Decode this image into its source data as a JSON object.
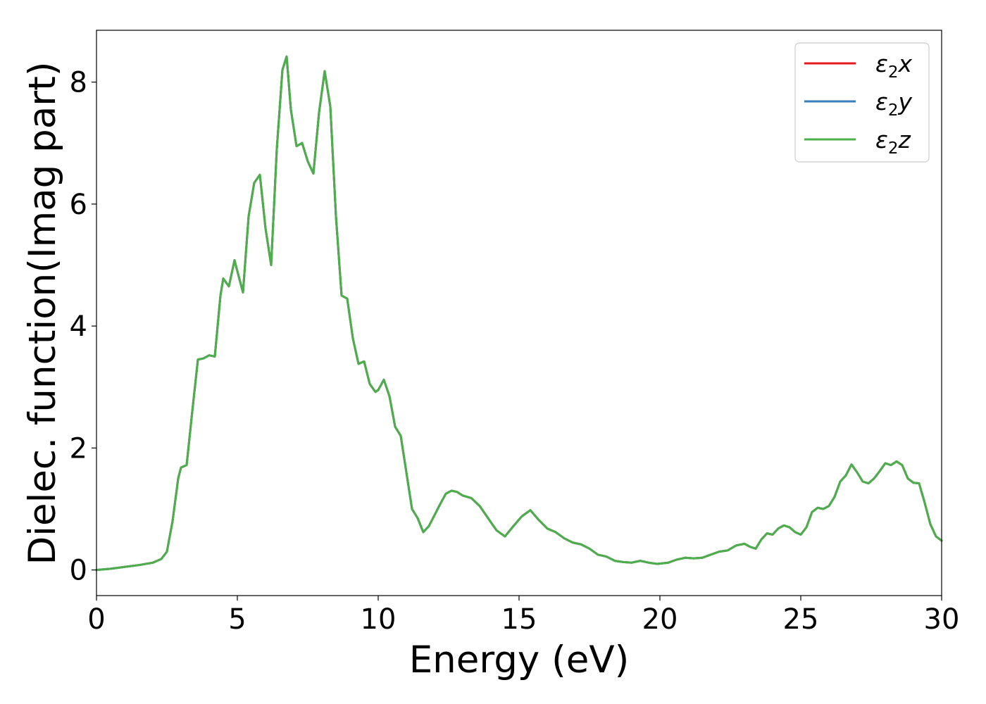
{
  "chart_data": {
    "type": "line",
    "title": "",
    "xlabel": "Energy (eV)",
    "ylabel": "Dielec. function(Imag part)",
    "xlim": [
      0,
      30
    ],
    "ylim": [
      -0.42,
      8.85
    ],
    "xticks": [
      0,
      5,
      10,
      15,
      20,
      25,
      30
    ],
    "yticks": [
      0,
      2,
      4,
      6,
      8
    ],
    "grid": false,
    "legend_position": "top-right",
    "x": [
      0,
      0.5,
      1.0,
      1.5,
      2.0,
      2.3,
      2.5,
      2.7,
      2.9,
      3.0,
      3.2,
      3.4,
      3.6,
      3.8,
      4.0,
      4.2,
      4.4,
      4.5,
      4.7,
      4.9,
      5.0,
      5.2,
      5.4,
      5.6,
      5.8,
      6.0,
      6.2,
      6.4,
      6.6,
      6.75,
      6.9,
      7.1,
      7.3,
      7.5,
      7.7,
      7.9,
      8.1,
      8.3,
      8.5,
      8.7,
      8.9,
      9.1,
      9.3,
      9.5,
      9.7,
      9.9,
      10.0,
      10.2,
      10.4,
      10.6,
      10.8,
      11.0,
      11.2,
      11.4,
      11.6,
      11.8,
      12.0,
      12.2,
      12.4,
      12.6,
      12.8,
      13.0,
      13.3,
      13.6,
      13.9,
      14.2,
      14.5,
      14.8,
      15.1,
      15.4,
      15.7,
      16.0,
      16.3,
      16.6,
      16.9,
      17.2,
      17.5,
      17.8,
      18.1,
      18.4,
      18.7,
      19.0,
      19.3,
      19.6,
      19.9,
      20.3,
      20.6,
      20.9,
      21.2,
      21.5,
      21.8,
      22.1,
      22.4,
      22.7,
      23.0,
      23.2,
      23.4,
      23.6,
      23.8,
      24.0,
      24.2,
      24.4,
      24.6,
      24.8,
      25.0,
      25.2,
      25.4,
      25.6,
      25.8,
      26.0,
      26.2,
      26.4,
      26.6,
      26.8,
      27.0,
      27.2,
      27.4,
      27.6,
      27.8,
      28.0,
      28.2,
      28.4,
      28.6,
      28.8,
      29.0,
      29.2,
      29.4,
      29.6,
      29.8,
      30.0
    ],
    "series": [
      {
        "name": "ε₂x",
        "color": "#e41a1c",
        "values": [
          0,
          0.02,
          0.05,
          0.08,
          0.12,
          0.18,
          0.3,
          0.8,
          1.5,
          1.68,
          1.72,
          2.6,
          3.45,
          3.47,
          3.52,
          3.5,
          4.5,
          4.78,
          4.65,
          5.08,
          4.9,
          4.55,
          5.8,
          6.35,
          6.48,
          5.6,
          5.0,
          6.9,
          8.2,
          8.42,
          7.55,
          6.95,
          7.0,
          6.7,
          6.5,
          7.5,
          8.18,
          7.6,
          5.8,
          4.5,
          4.45,
          3.8,
          3.38,
          3.42,
          3.05,
          2.92,
          2.95,
          3.12,
          2.85,
          2.35,
          2.2,
          1.6,
          1.0,
          0.85,
          0.62,
          0.72,
          0.9,
          1.08,
          1.25,
          1.3,
          1.28,
          1.22,
          1.18,
          1.05,
          0.85,
          0.65,
          0.55,
          0.72,
          0.88,
          0.98,
          0.82,
          0.68,
          0.62,
          0.52,
          0.45,
          0.42,
          0.35,
          0.25,
          0.22,
          0.15,
          0.13,
          0.12,
          0.15,
          0.12,
          0.1,
          0.12,
          0.17,
          0.2,
          0.19,
          0.2,
          0.25,
          0.3,
          0.32,
          0.4,
          0.43,
          0.38,
          0.35,
          0.5,
          0.6,
          0.58,
          0.68,
          0.73,
          0.7,
          0.62,
          0.58,
          0.7,
          0.95,
          1.02,
          1.0,
          1.05,
          1.2,
          1.45,
          1.55,
          1.73,
          1.6,
          1.45,
          1.42,
          1.5,
          1.62,
          1.75,
          1.72,
          1.78,
          1.72,
          1.5,
          1.43,
          1.42,
          1.1,
          0.75,
          0.55,
          0.48
        ]
      },
      {
        "name": "ε₂y",
        "color": "#377eb8",
        "values": [
          0,
          0.02,
          0.05,
          0.08,
          0.12,
          0.18,
          0.3,
          0.8,
          1.5,
          1.68,
          1.72,
          2.6,
          3.45,
          3.47,
          3.52,
          3.5,
          4.5,
          4.78,
          4.65,
          5.08,
          4.9,
          4.55,
          5.8,
          6.35,
          6.48,
          5.6,
          5.0,
          6.9,
          8.2,
          8.42,
          7.55,
          6.95,
          7.0,
          6.7,
          6.5,
          7.5,
          8.18,
          7.6,
          5.8,
          4.5,
          4.45,
          3.8,
          3.38,
          3.42,
          3.05,
          2.92,
          2.95,
          3.12,
          2.85,
          2.35,
          2.2,
          1.6,
          1.0,
          0.85,
          0.62,
          0.72,
          0.9,
          1.08,
          1.25,
          1.3,
          1.28,
          1.22,
          1.18,
          1.05,
          0.85,
          0.65,
          0.55,
          0.72,
          0.88,
          0.98,
          0.82,
          0.68,
          0.62,
          0.52,
          0.45,
          0.42,
          0.35,
          0.25,
          0.22,
          0.15,
          0.13,
          0.12,
          0.15,
          0.12,
          0.1,
          0.12,
          0.17,
          0.2,
          0.19,
          0.2,
          0.25,
          0.3,
          0.32,
          0.4,
          0.43,
          0.38,
          0.35,
          0.5,
          0.6,
          0.58,
          0.68,
          0.73,
          0.7,
          0.62,
          0.58,
          0.7,
          0.95,
          1.02,
          1.0,
          1.05,
          1.2,
          1.45,
          1.55,
          1.73,
          1.6,
          1.45,
          1.42,
          1.5,
          1.62,
          1.75,
          1.72,
          1.78,
          1.72,
          1.5,
          1.43,
          1.42,
          1.1,
          0.75,
          0.55,
          0.48
        ]
      },
      {
        "name": "ε₂z",
        "color": "#4daf4a",
        "values": [
          0,
          0.02,
          0.05,
          0.08,
          0.12,
          0.18,
          0.3,
          0.8,
          1.5,
          1.68,
          1.72,
          2.6,
          3.45,
          3.47,
          3.52,
          3.5,
          4.5,
          4.78,
          4.65,
          5.08,
          4.9,
          4.55,
          5.8,
          6.35,
          6.48,
          5.6,
          5.0,
          6.9,
          8.2,
          8.42,
          7.55,
          6.95,
          7.0,
          6.7,
          6.5,
          7.5,
          8.18,
          7.6,
          5.8,
          4.5,
          4.45,
          3.8,
          3.38,
          3.42,
          3.05,
          2.92,
          2.95,
          3.12,
          2.85,
          2.35,
          2.2,
          1.6,
          1.0,
          0.85,
          0.62,
          0.72,
          0.9,
          1.08,
          1.25,
          1.3,
          1.28,
          1.22,
          1.18,
          1.05,
          0.85,
          0.65,
          0.55,
          0.72,
          0.88,
          0.98,
          0.82,
          0.68,
          0.62,
          0.52,
          0.45,
          0.42,
          0.35,
          0.25,
          0.22,
          0.15,
          0.13,
          0.12,
          0.15,
          0.12,
          0.1,
          0.12,
          0.17,
          0.2,
          0.19,
          0.2,
          0.25,
          0.3,
          0.32,
          0.4,
          0.43,
          0.38,
          0.35,
          0.5,
          0.6,
          0.58,
          0.68,
          0.73,
          0.7,
          0.62,
          0.58,
          0.7,
          0.95,
          1.02,
          1.0,
          1.05,
          1.2,
          1.45,
          1.55,
          1.73,
          1.6,
          1.45,
          1.42,
          1.5,
          1.62,
          1.75,
          1.72,
          1.78,
          1.72,
          1.5,
          1.43,
          1.42,
          1.1,
          0.75,
          0.55,
          0.48
        ]
      }
    ],
    "legend": [
      {
        "label_base": "ε",
        "label_sub": "2",
        "label_suffix": "x"
      },
      {
        "label_base": "ε",
        "label_sub": "2",
        "label_suffix": "y"
      },
      {
        "label_base": "ε",
        "label_sub": "2",
        "label_suffix": "z"
      }
    ]
  }
}
